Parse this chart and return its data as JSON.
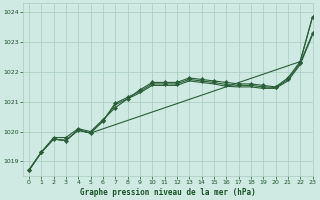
{
  "bg_color": "#ceeae3",
  "grid_color": "#a8ccbe",
  "line_color": "#2a5e38",
  "marker_color": "#2a5e38",
  "title": "Graphe pression niveau de la mer (hPa)",
  "title_color": "#1a5228",
  "xlim": [
    -0.5,
    23
  ],
  "ylim": [
    1018.5,
    1024.3
  ],
  "yticks": [
    1019,
    1020,
    1021,
    1022,
    1023,
    1024
  ],
  "xticks": [
    0,
    1,
    2,
    3,
    4,
    5,
    6,
    7,
    8,
    9,
    10,
    11,
    12,
    13,
    14,
    15,
    16,
    17,
    18,
    19,
    20,
    21,
    22,
    23
  ],
  "series_top": {
    "x": [
      0,
      1,
      2,
      3,
      4,
      5,
      6,
      7,
      8,
      9,
      10,
      11,
      12,
      13,
      14,
      15,
      16,
      17,
      18,
      19,
      20,
      21,
      22,
      23
    ],
    "y": [
      1018.7,
      1019.3,
      1019.8,
      1019.8,
      1020.1,
      1020.0,
      1020.4,
      1020.8,
      1021.1,
      1021.4,
      1021.65,
      1021.65,
      1021.65,
      1021.8,
      1021.75,
      1021.7,
      1021.65,
      1021.6,
      1021.6,
      1021.55,
      1021.5,
      1021.8,
      1022.35,
      1023.85
    ]
  },
  "series_mid1": {
    "x": [
      0,
      1,
      2,
      3,
      4,
      5,
      6,
      7,
      8,
      9,
      10,
      11,
      12,
      13,
      14,
      15,
      16,
      17,
      18,
      19,
      20,
      21,
      22,
      23
    ],
    "y": [
      1018.7,
      1019.3,
      1019.75,
      1019.7,
      1020.05,
      1019.95,
      1020.35,
      1020.95,
      1021.15,
      1021.35,
      1021.6,
      1021.6,
      1021.6,
      1021.75,
      1021.7,
      1021.65,
      1021.58,
      1021.55,
      1021.55,
      1021.5,
      1021.48,
      1021.75,
      1022.3,
      1023.3
    ]
  },
  "series_mid2": {
    "x": [
      0,
      1,
      2,
      3,
      4,
      5,
      6,
      7,
      8,
      9,
      10,
      11,
      12,
      13,
      14,
      15,
      16,
      17,
      18,
      19,
      20,
      21,
      22,
      23
    ],
    "y": [
      1018.7,
      1019.3,
      1019.75,
      1019.7,
      1020.05,
      1019.95,
      1020.35,
      1020.9,
      1021.1,
      1021.3,
      1021.55,
      1021.55,
      1021.55,
      1021.7,
      1021.65,
      1021.6,
      1021.52,
      1021.5,
      1021.5,
      1021.45,
      1021.45,
      1021.7,
      1022.25,
      1023.25
    ]
  },
  "series_steep": {
    "x": [
      0,
      1,
      2,
      3,
      4,
      5,
      22,
      23
    ],
    "y": [
      1018.7,
      1019.3,
      1019.75,
      1019.7,
      1020.05,
      1019.95,
      1022.35,
      1023.85
    ]
  }
}
